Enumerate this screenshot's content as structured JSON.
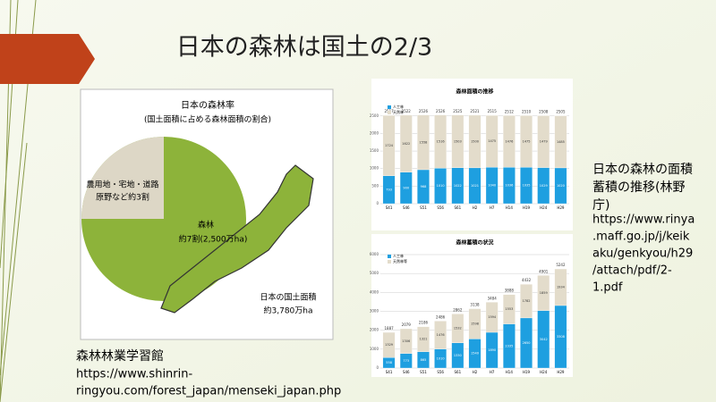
{
  "header": {
    "title": "日本の森林は国土の2/3"
  },
  "left_panel": {
    "title": "日本の森林率",
    "subtitle": "(国土面積に占める森林面積の割合)",
    "other_label": [
      "農用地・宅地・道路",
      "原野など約3割"
    ],
    "forest_label": "森林",
    "forest_value": "約7割(2,500万ha)",
    "area_label": "日本の国土面積",
    "area_value": "約3,780万ha"
  },
  "left_caption": {
    "source": "森林林業学習館",
    "url": [
      "https://www.shinrin-",
      "ringyou.com/forest_japan/menseki_japan.php"
    ]
  },
  "right_caption": {
    "title": [
      "日本の森林の面積",
      "蓄積の推移(林野",
      "庁)"
    ],
    "url": [
      "https://www.rinya",
      ".maff.go.jp/j/keik",
      "aku/genkyou/h29",
      "/attach/pdf/2-",
      "1.pdf"
    ]
  },
  "chart_data": [
    {
      "type": "bar",
      "stacked": true,
      "title": "森林面積の推移",
      "categories": [
        "S41",
        "S46",
        "S51",
        "S56",
        "S61",
        "H2",
        "H7",
        "H14",
        "H19",
        "H24",
        "H29"
      ],
      "series": [
        {
          "name": "人工林",
          "color": "#1e9fe0",
          "values": [
            793,
            900,
            968,
            1010,
            1022,
            1021,
            1040,
            1036,
            1035,
            1029,
            1020
          ]
        },
        {
          "name": "天然林",
          "color": "#e3dccb",
          "values": [
            1724,
            1622,
            1558,
            1516,
            1503,
            1500,
            1475,
            1476,
            1475,
            1479,
            1485
          ]
        }
      ],
      "totals": [
        2517,
        2522,
        2526,
        2526,
        2525,
        2521,
        2515,
        2512,
        2510,
        2508,
        2505
      ],
      "ylim": [
        0,
        2800
      ],
      "yticks": [
        0,
        500,
        1000,
        1500,
        2000,
        2500
      ],
      "grid": true
    },
    {
      "type": "bar",
      "stacked": true,
      "title": "森林蓄積の状況",
      "categories": [
        "S41",
        "S46",
        "S51",
        "S56",
        "S61",
        "H2",
        "H7",
        "H14",
        "H19",
        "H24",
        "H29"
      ],
      "series": [
        {
          "name": "人工林",
          "color": "#1e9fe0",
          "values": [
            558,
            773,
            865,
            1010,
            1330,
            1540,
            1890,
            2335,
            2650,
            3042,
            3308
          ]
        },
        {
          "name": "天然林等",
          "color": "#e3dccb",
          "values": [
            1329,
            1306,
            1321,
            1476,
            1532,
            1598,
            1594,
            1553,
            1782,
            1859,
            1934
          ]
        }
      ],
      "totals": [
        1887,
        2079,
        2186,
        2486,
        2862,
        3138,
        3484,
        3888,
        4432,
        4901,
        5242
      ],
      "ylim": [
        0,
        6000
      ],
      "yticks": [
        0,
        1000,
        2000,
        3000,
        4000,
        5000,
        6000
      ],
      "grid": true
    }
  ]
}
